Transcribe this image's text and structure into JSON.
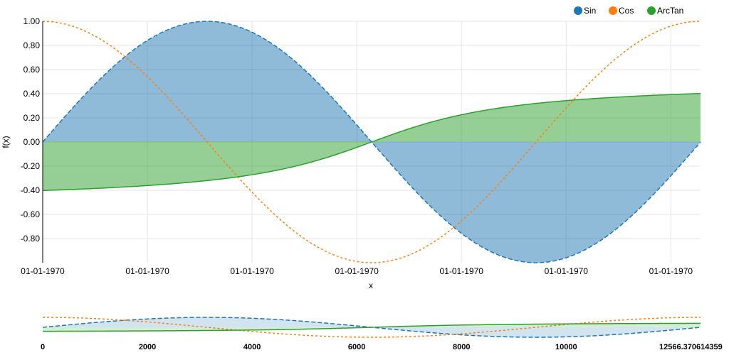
{
  "chart_data": {
    "type": "area",
    "xlabel": "x",
    "ylabel": "f(x)",
    "ylim": [
      -1,
      1
    ],
    "y_ticks": [
      "1.00",
      "0.80",
      "0.60",
      "0.40",
      "0.20",
      "0.00",
      "-0.20",
      "-0.40",
      "-0.60",
      "-0.80"
    ],
    "x_tick_labels": [
      "01-01-1970",
      "01-01-1970",
      "01-01-1970",
      "01-01-1970",
      "01-01-1970",
      "01-01-1970",
      "01-01-1970"
    ],
    "x_domain_ms": [
      0,
      12566.370614359
    ],
    "legend_placement": "top-right",
    "grid": true,
    "series": [
      {
        "name": "Sin",
        "color": "#1f77b4",
        "style": "dashed",
        "filled": true,
        "function": "sin(x/2000)"
      },
      {
        "name": "Cos",
        "color": "#ff7f0e",
        "style": "dotted",
        "filled": false,
        "function": "cos(x/2000)"
      },
      {
        "name": "ArcTan",
        "color": "#2ca02c",
        "style": "solid",
        "filled": true,
        "function": "0.5*atan(x/2000 - pi)/(pi/2)"
      }
    ],
    "context": {
      "x_ticks": [
        "0",
        "2000",
        "4000",
        "6000",
        "8000",
        "10000"
      ],
      "x_end_label": "12566.370614359"
    }
  }
}
